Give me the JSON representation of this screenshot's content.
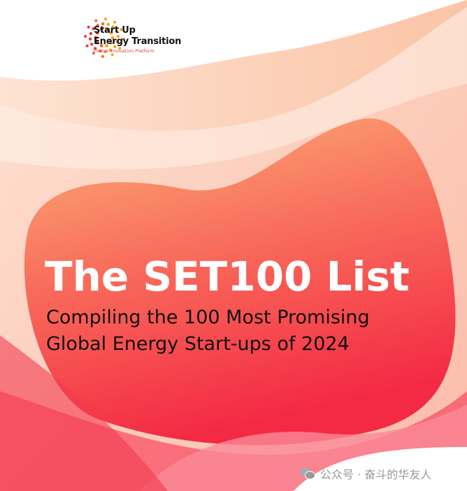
{
  "logo": {
    "line1": "Start Up",
    "line2": "Energy Transition",
    "tagline": "Global Innovation Platform"
  },
  "cover": {
    "title": "The SET100 List",
    "subtitle_line1": "Compiling the 100 Most Promising",
    "subtitle_line2": "Global Energy Start-ups of 2024"
  },
  "watermark": {
    "icon": "wechat-icon",
    "text": "公众号 · 奋斗的华友人"
  },
  "colors": {
    "accent_red": "#f0283c",
    "accent_orange": "#f99b5a",
    "tagline": "#e8383d"
  }
}
